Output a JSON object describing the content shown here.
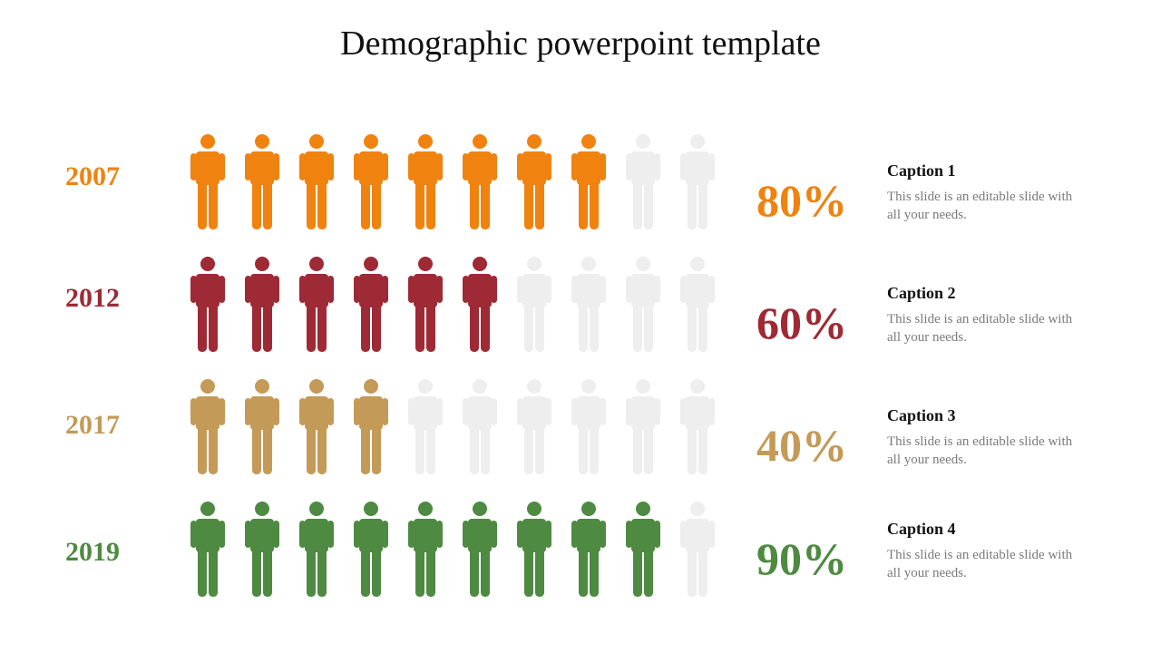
{
  "title": "Demographic powerpoint template",
  "colors": {
    "inactive": "#eeeeee"
  },
  "rows": [
    {
      "year": "2007",
      "percent": "80%",
      "filled": 8,
      "total": 10,
      "color": "#f0820f",
      "caption_title": "Caption 1",
      "caption_text": "This slide is an editable slide with all your needs."
    },
    {
      "year": "2012",
      "percent": "60%",
      "filled": 6,
      "total": 10,
      "color": "#9e2a36",
      "caption_title": "Caption 2",
      "caption_text": "This slide is an editable slide with all your needs."
    },
    {
      "year": "2017",
      "percent": "40%",
      "filled": 4,
      "total": 10,
      "color": "#c49a58",
      "caption_title": "Caption 3",
      "caption_text": "This slide is an editable slide with all your needs."
    },
    {
      "year": "2019",
      "percent": "90%",
      "filled": 9,
      "total": 10,
      "color": "#4e8a41",
      "caption_title": "Caption 4",
      "caption_text": "This slide is an editable slide with all your needs."
    }
  ]
}
